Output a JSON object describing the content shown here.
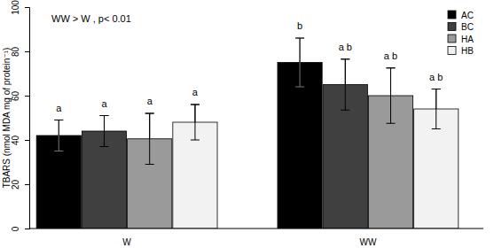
{
  "chart_data": {
    "type": "bar",
    "y_label": "TBARS (nmol MDA mg of protein⁻¹)",
    "annotations": [
      "WW > W , p< 0.01"
    ],
    "categories": [
      "W",
      "WW"
    ],
    "series": [
      {
        "name": "AC",
        "color": "#000000",
        "values": [
          42,
          75
        ],
        "errors": [
          7,
          11
        ],
        "letters": [
          "a",
          "b"
        ]
      },
      {
        "name": "BC",
        "color": "#404040",
        "values": [
          44,
          65
        ],
        "errors": [
          7,
          11.5
        ],
        "letters": [
          "a",
          "a b"
        ]
      },
      {
        "name": "HA",
        "color": "#9a9a9a",
        "values": [
          40.5,
          60
        ],
        "errors": [
          11.5,
          12.5
        ],
        "letters": [
          "a",
          "a b"
        ]
      },
      {
        "name": "HB",
        "color": "#f2f2f2",
        "values": [
          48,
          54
        ],
        "errors": [
          8,
          9
        ],
        "letters": [
          "a",
          "a b"
        ]
      }
    ],
    "ylim": [
      0,
      100
    ],
    "yticks": [
      0,
      20,
      40,
      60,
      80,
      100
    ],
    "legend": "upper right",
    "grid": false
  }
}
